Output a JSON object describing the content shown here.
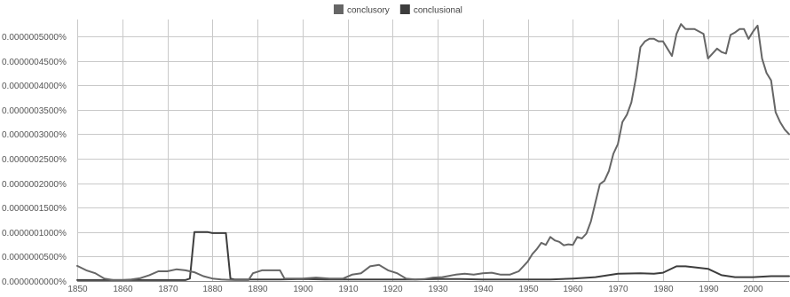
{
  "chart_data": {
    "type": "line",
    "title": "",
    "xlabel": "",
    "ylabel": "",
    "xlim": [
      1850,
      2008
    ],
    "ylim": [
      0,
      5.2e-06
    ],
    "grid": true,
    "legend_placement": "top-center",
    "x_ticks": [
      "1850",
      "1860",
      "1870",
      "1880",
      "1890",
      "1900",
      "1910",
      "1920",
      "1930",
      "1940",
      "1950",
      "1960",
      "1970",
      "1980",
      "1990",
      "2000"
    ],
    "y_ticks": [
      {
        "value": 0.0,
        "label": "0.0000000000%"
      },
      {
        "value": 5e-07,
        "label": "0.0000000500%"
      },
      {
        "value": 1e-06,
        "label": "0.0000001000%"
      },
      {
        "value": 1.5e-06,
        "label": "0.0000001500%"
      },
      {
        "value": 2e-06,
        "label": "0.0000002000%"
      },
      {
        "value": 2.5e-06,
        "label": "0.0000002500%"
      },
      {
        "value": 3e-06,
        "label": "0.0000003000%"
      },
      {
        "value": 3.5e-06,
        "label": "0.0000003500%"
      },
      {
        "value": 4e-06,
        "label": "0.0000004000%"
      },
      {
        "value": 4.5e-06,
        "label": "0.0000004500%"
      },
      {
        "value": 5e-06,
        "label": "0.0000005000%"
      }
    ],
    "series": [
      {
        "name": "conclusory",
        "color": "#666666",
        "points": [
          [
            1850,
            3.1e-07
          ],
          [
            1852,
            2.2e-07
          ],
          [
            1854,
            1.6e-07
          ],
          [
            1856,
            5e-08
          ],
          [
            1858,
            2e-08
          ],
          [
            1860,
            2e-08
          ],
          [
            1862,
            3e-08
          ],
          [
            1864,
            6e-08
          ],
          [
            1866,
            1.2e-07
          ],
          [
            1868,
            2e-07
          ],
          [
            1870,
            2e-07
          ],
          [
            1872,
            2.4e-07
          ],
          [
            1874,
            2.2e-07
          ],
          [
            1876,
            1.8e-07
          ],
          [
            1878,
            1e-07
          ],
          [
            1880,
            5e-08
          ],
          [
            1882,
            3e-08
          ],
          [
            1885,
            2e-08
          ],
          [
            1888,
            2e-08
          ],
          [
            1889,
            1.6e-07
          ],
          [
            1891,
            2.2e-07
          ],
          [
            1893,
            2.2e-07
          ],
          [
            1895,
            2.2e-07
          ],
          [
            1896,
            5e-08
          ],
          [
            1898,
            5e-08
          ],
          [
            1900,
            5e-08
          ],
          [
            1903,
            7e-08
          ],
          [
            1906,
            5e-08
          ],
          [
            1909,
            5e-08
          ],
          [
            1911,
            1.3e-07
          ],
          [
            1913,
            1.6e-07
          ],
          [
            1915,
            3e-07
          ],
          [
            1917,
            3.3e-07
          ],
          [
            1919,
            2.2e-07
          ],
          [
            1921,
            1.6e-07
          ],
          [
            1923,
            5e-08
          ],
          [
            1925,
            3e-08
          ],
          [
            1927,
            4e-08
          ],
          [
            1929,
            7e-08
          ],
          [
            1931,
            8e-08
          ],
          [
            1934,
            1.3e-07
          ],
          [
            1936,
            1.5e-07
          ],
          [
            1938,
            1.3e-07
          ],
          [
            1940,
            1.6e-07
          ],
          [
            1942,
            1.7e-07
          ],
          [
            1944,
            1.3e-07
          ],
          [
            1946,
            1.3e-07
          ],
          [
            1948,
            2e-07
          ],
          [
            1950,
            4e-07
          ],
          [
            1951,
            5.5e-07
          ],
          [
            1952,
            6.5e-07
          ],
          [
            1953,
            7.8e-07
          ],
          [
            1954,
            7.4e-07
          ],
          [
            1955,
            9e-07
          ],
          [
            1956,
            8.3e-07
          ],
          [
            1957,
            8e-07
          ],
          [
            1958,
            7.3e-07
          ],
          [
            1959,
            7.5e-07
          ],
          [
            1960,
            7.4e-07
          ],
          [
            1961,
            9e-07
          ],
          [
            1962,
            8.7e-07
          ],
          [
            1963,
            9.7e-07
          ],
          [
            1964,
            1.22e-06
          ],
          [
            1965,
            1.6e-06
          ],
          [
            1966,
            1.98e-06
          ],
          [
            1967,
            2.05e-06
          ],
          [
            1968,
            2.25e-06
          ],
          [
            1969,
            2.6e-06
          ],
          [
            1970,
            2.8e-06
          ],
          [
            1971,
            3.25e-06
          ],
          [
            1972,
            3.4e-06
          ],
          [
            1973,
            3.65e-06
          ],
          [
            1974,
            4.15e-06
          ],
          [
            1975,
            4.78e-06
          ],
          [
            1976,
            4.9e-06
          ],
          [
            1977,
            4.95e-06
          ],
          [
            1978,
            4.95e-06
          ],
          [
            1979,
            4.9e-06
          ],
          [
            1980,
            4.9e-06
          ],
          [
            1981,
            4.75e-06
          ],
          [
            1982,
            4.6e-06
          ],
          [
            1983,
            5.05e-06
          ],
          [
            1984,
            5.25e-06
          ],
          [
            1985,
            5.15e-06
          ],
          [
            1986,
            5.15e-06
          ],
          [
            1987,
            5.15e-06
          ],
          [
            1988,
            5.1e-06
          ],
          [
            1989,
            5.05e-06
          ],
          [
            1990,
            4.55e-06
          ],
          [
            1991,
            4.65e-06
          ],
          [
            1992,
            4.75e-06
          ],
          [
            1993,
            4.68e-06
          ],
          [
            1994,
            4.65e-06
          ],
          [
            1995,
            5.03e-06
          ],
          [
            1996,
            5.08e-06
          ],
          [
            1997,
            5.15e-06
          ],
          [
            1998,
            5.15e-06
          ],
          [
            1999,
            4.95e-06
          ],
          [
            2000,
            5.1e-06
          ],
          [
            2001,
            5.22e-06
          ],
          [
            2002,
            4.55e-06
          ],
          [
            2003,
            4.25e-06
          ],
          [
            2004,
            4.1e-06
          ],
          [
            2005,
            3.45e-06
          ],
          [
            2006,
            3.25e-06
          ],
          [
            2007,
            3.1e-06
          ],
          [
            2008,
            3e-06
          ]
        ]
      },
      {
        "name": "conclusional",
        "color": "#3d3d3d",
        "points": [
          [
            1850,
            2e-08
          ],
          [
            1860,
            2e-08
          ],
          [
            1870,
            2e-08
          ],
          [
            1874,
            2e-08
          ],
          [
            1875,
            5e-08
          ],
          [
            1876,
            1e-06
          ],
          [
            1879,
            1e-06
          ],
          [
            1880,
            9.8e-07
          ],
          [
            1883,
            9.8e-07
          ],
          [
            1884,
            5e-08
          ],
          [
            1885,
            3e-08
          ],
          [
            1890,
            3e-08
          ],
          [
            1895,
            3e-08
          ],
          [
            1900,
            4e-08
          ],
          [
            1905,
            3e-08
          ],
          [
            1910,
            3e-08
          ],
          [
            1915,
            3e-08
          ],
          [
            1920,
            3e-08
          ],
          [
            1925,
            3e-08
          ],
          [
            1930,
            4e-08
          ],
          [
            1935,
            4e-08
          ],
          [
            1940,
            3e-08
          ],
          [
            1945,
            3e-08
          ],
          [
            1950,
            3e-08
          ],
          [
            1955,
            3e-08
          ],
          [
            1960,
            5e-08
          ],
          [
            1965,
            8e-08
          ],
          [
            1970,
            1.5e-07
          ],
          [
            1975,
            1.6e-07
          ],
          [
            1978,
            1.5e-07
          ],
          [
            1980,
            1.7e-07
          ],
          [
            1983,
            3e-07
          ],
          [
            1985,
            3e-07
          ],
          [
            1987,
            2.8e-07
          ],
          [
            1990,
            2.5e-07
          ],
          [
            1993,
            1.2e-07
          ],
          [
            1996,
            8e-08
          ],
          [
            2000,
            8e-08
          ],
          [
            2004,
            1e-07
          ],
          [
            2008,
            1e-07
          ]
        ]
      }
    ]
  }
}
